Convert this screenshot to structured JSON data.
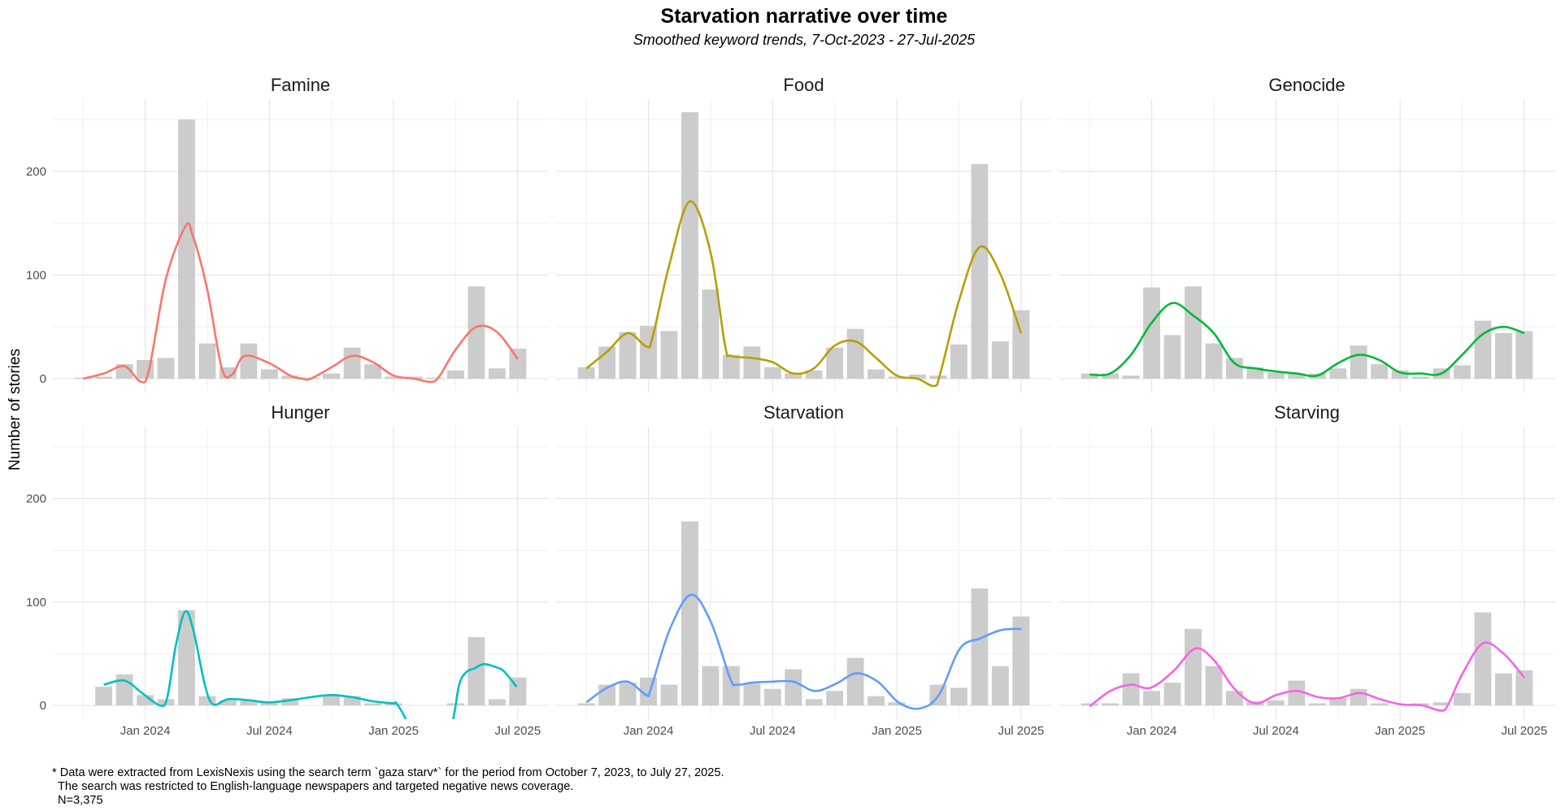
{
  "chart_data": {
    "type": "bar",
    "title": "Starvation narrative over time",
    "subtitle": "Smoothed keyword trends, 7-Oct-2023 - 27-Jul-2025",
    "xlabel": "",
    "ylabel": "Number of stories",
    "categories": [
      "Oct 2023",
      "Nov 2023",
      "Dec 2023",
      "Jan 2024",
      "Feb 2024",
      "Mar 2024",
      "Apr 2024",
      "May 2024",
      "Jun 2024",
      "Jul 2024",
      "Aug 2024",
      "Sep 2024",
      "Oct 2024",
      "Nov 2024",
      "Dec 2024",
      "Jan 2025",
      "Feb 2025",
      "Mar 2025",
      "Apr 2025",
      "May 2025",
      "Jun 2025",
      "Jul 2025"
    ],
    "x_ticks": [
      {
        "label": "Jan 2024",
        "index": 3
      },
      {
        "label": "Jul 2024",
        "index": 9
      },
      {
        "label": "Jan 2025",
        "index": 15
      },
      {
        "label": "Jul 2025",
        "index": 21
      }
    ],
    "x_minor_ticks": [
      0,
      6,
      12,
      18
    ],
    "y_ticks": [
      {
        "label": "0",
        "value": 0
      },
      {
        "label": "100",
        "value": 100
      },
      {
        "label": "200",
        "value": 200
      }
    ],
    "y_minor_ticks": [
      50,
      150,
      250
    ],
    "ylim": [
      -13.3,
      269.6
    ],
    "xlim": [
      -1.5,
      22.5
    ],
    "grid": true,
    "bar_color": "#cccccc",
    "facets": [
      {
        "name": "Famine",
        "color": "#F8766D",
        "values": [
          1,
          2,
          14,
          18,
          20,
          250,
          34,
          11,
          34,
          9,
          3,
          1,
          5,
          30,
          14,
          2,
          2,
          1,
          8,
          89,
          10,
          29
        ],
        "smooth": [
          [
            0,
            0
          ],
          [
            1,
            5
          ],
          [
            2,
            12
          ],
          [
            2.8,
            -3
          ],
          [
            3.2,
            10
          ],
          [
            4,
            96
          ],
          [
            4.95,
            147
          ],
          [
            5.3,
            138
          ],
          [
            6,
            86
          ],
          [
            6.7,
            10
          ],
          [
            7.2,
            4
          ],
          [
            7.8,
            22
          ],
          [
            9,
            15
          ],
          [
            10,
            3
          ],
          [
            10.6,
            0
          ],
          [
            11,
            0
          ],
          [
            12,
            11
          ],
          [
            13,
            22
          ],
          [
            14,
            16
          ],
          [
            15,
            3
          ],
          [
            16,
            0
          ],
          [
            16.8,
            -3
          ],
          [
            17.2,
            2
          ],
          [
            18,
            28
          ],
          [
            19,
            50
          ],
          [
            20,
            45
          ],
          [
            21,
            19
          ]
        ]
      },
      {
        "name": "Food",
        "color": "#B79F00",
        "values": [
          11,
          31,
          45,
          51,
          46,
          257,
          86,
          23,
          31,
          11,
          5,
          8,
          30,
          48,
          9,
          2,
          4,
          3,
          33,
          207,
          36,
          66
        ],
        "smooth": [
          [
            0,
            10
          ],
          [
            1,
            26
          ],
          [
            2,
            44
          ],
          [
            2.9,
            31
          ],
          [
            3.2,
            40
          ],
          [
            4,
            109
          ],
          [
            5,
            171
          ],
          [
            6,
            122
          ],
          [
            6.7,
            32
          ],
          [
            7,
            22
          ],
          [
            8,
            20
          ],
          [
            9,
            16
          ],
          [
            10,
            5
          ],
          [
            11,
            10
          ],
          [
            12,
            32
          ],
          [
            13,
            36
          ],
          [
            14,
            20
          ],
          [
            15,
            3
          ],
          [
            16,
            0
          ],
          [
            16.8,
            -7
          ],
          [
            17.1,
            5
          ],
          [
            18,
            75
          ],
          [
            19,
            127
          ],
          [
            20,
            101
          ],
          [
            21,
            44
          ]
        ]
      },
      {
        "name": "Genocide",
        "color": "#00BA38",
        "values": [
          5,
          5,
          3,
          88,
          42,
          89,
          34,
          20,
          11,
          6,
          5,
          5,
          10,
          32,
          14,
          8,
          2,
          10,
          13,
          56,
          44,
          46
        ],
        "smooth": [
          [
            0,
            4
          ],
          [
            1,
            5
          ],
          [
            2,
            23
          ],
          [
            3,
            54
          ],
          [
            4,
            73
          ],
          [
            5,
            61
          ],
          [
            6,
            44
          ],
          [
            7,
            15
          ],
          [
            8,
            10
          ],
          [
            9,
            7
          ],
          [
            10,
            5
          ],
          [
            11,
            3
          ],
          [
            12,
            15
          ],
          [
            13,
            23
          ],
          [
            14,
            18
          ],
          [
            15,
            6
          ],
          [
            16,
            5
          ],
          [
            17,
            5
          ],
          [
            18,
            23
          ],
          [
            19,
            43
          ],
          [
            20,
            50
          ],
          [
            21,
            44
          ]
        ]
      },
      {
        "name": "Hunger",
        "color": "#00BFC4",
        "values": [
          0,
          18,
          30,
          10,
          6,
          92,
          9,
          5,
          5,
          4,
          7,
          0,
          10,
          9,
          2,
          2,
          0,
          0,
          2,
          66,
          6,
          27
        ],
        "smooth": [
          [
            1,
            20
          ],
          [
            2,
            24
          ],
          [
            2.85,
            12
          ],
          [
            3.72,
            0
          ],
          [
            4.07,
            8
          ],
          [
            4.5,
            60
          ],
          [
            4.95,
            91
          ],
          [
            5.36,
            70
          ],
          [
            5.88,
            20
          ],
          [
            6.28,
            1
          ],
          [
            7,
            6
          ],
          [
            8,
            5
          ],
          [
            8.94,
            3
          ],
          [
            10,
            5
          ],
          [
            11,
            8
          ],
          [
            12,
            10
          ],
          [
            13,
            8
          ],
          [
            14,
            4
          ],
          [
            15,
            2
          ],
          [
            15.14,
            2
          ],
          [
            15.6,
            -14
          ],
          [
            16.2,
            -50
          ],
          [
            16.8,
            -60
          ],
          [
            17.4,
            -40
          ],
          [
            17.87,
            -14
          ],
          [
            18.17,
            20
          ],
          [
            18.5,
            32
          ],
          [
            18.93,
            36
          ],
          [
            19.37,
            40
          ],
          [
            19.95,
            37
          ],
          [
            20.33,
            33
          ],
          [
            20.95,
            18
          ]
        ]
      },
      {
        "name": "Starvation",
        "color": "#619CFF",
        "values": [
          2,
          20,
          22,
          27,
          20,
          178,
          38,
          38,
          21,
          16,
          35,
          6,
          14,
          46,
          9,
          3,
          0,
          20,
          17,
          113,
          38,
          86
        ],
        "smooth": [
          [
            0,
            3
          ],
          [
            1,
            17
          ],
          [
            2,
            23
          ],
          [
            2.9,
            10
          ],
          [
            3.13,
            17
          ],
          [
            4.02,
            73
          ],
          [
            5.05,
            107
          ],
          [
            6.01,
            81
          ],
          [
            6.95,
            26
          ],
          [
            7.26,
            20
          ],
          [
            8,
            22
          ],
          [
            9.03,
            23
          ],
          [
            10,
            23
          ],
          [
            11.04,
            14
          ],
          [
            12.06,
            21
          ],
          [
            13.05,
            31
          ],
          [
            14.08,
            23
          ],
          [
            15.08,
            3
          ],
          [
            16.09,
            -3
          ],
          [
            17.03,
            10
          ],
          [
            18.05,
            55
          ],
          [
            19.05,
            65
          ],
          [
            20.06,
            73
          ],
          [
            21,
            74
          ]
        ]
      },
      {
        "name": "Starving",
        "color": "#F564E3",
        "values": [
          2,
          2,
          31,
          14,
          22,
          74,
          38,
          14,
          4,
          5,
          24,
          2,
          7,
          16,
          2,
          0,
          2,
          3,
          12,
          90,
          31,
          34
        ],
        "smooth": [
          [
            0,
            -1
          ],
          [
            1,
            14
          ],
          [
            2,
            20
          ],
          [
            2.95,
            17
          ],
          [
            4.04,
            33
          ],
          [
            5.1,
            55
          ],
          [
            6,
            44
          ],
          [
            7,
            16
          ],
          [
            8,
            2
          ],
          [
            9.02,
            10
          ],
          [
            10.03,
            14
          ],
          [
            11.04,
            8
          ],
          [
            12.02,
            7
          ],
          [
            13.06,
            12
          ],
          [
            14.04,
            6
          ],
          [
            15.05,
            1
          ],
          [
            16.07,
            0
          ],
          [
            16.95,
            -5
          ],
          [
            17.3,
            0
          ],
          [
            18,
            30
          ],
          [
            19,
            60
          ],
          [
            20,
            50
          ],
          [
            21,
            27
          ]
        ]
      }
    ]
  },
  "footnote": {
    "line1": "* Data were extracted from LexisNexis using the search term `gaza starv*` for the period from October 7, 2023, to July 27, 2025.",
    "line2": "The search was restricted to English-language newspapers and targeted negative news coverage.",
    "line3": "N=3,375"
  }
}
